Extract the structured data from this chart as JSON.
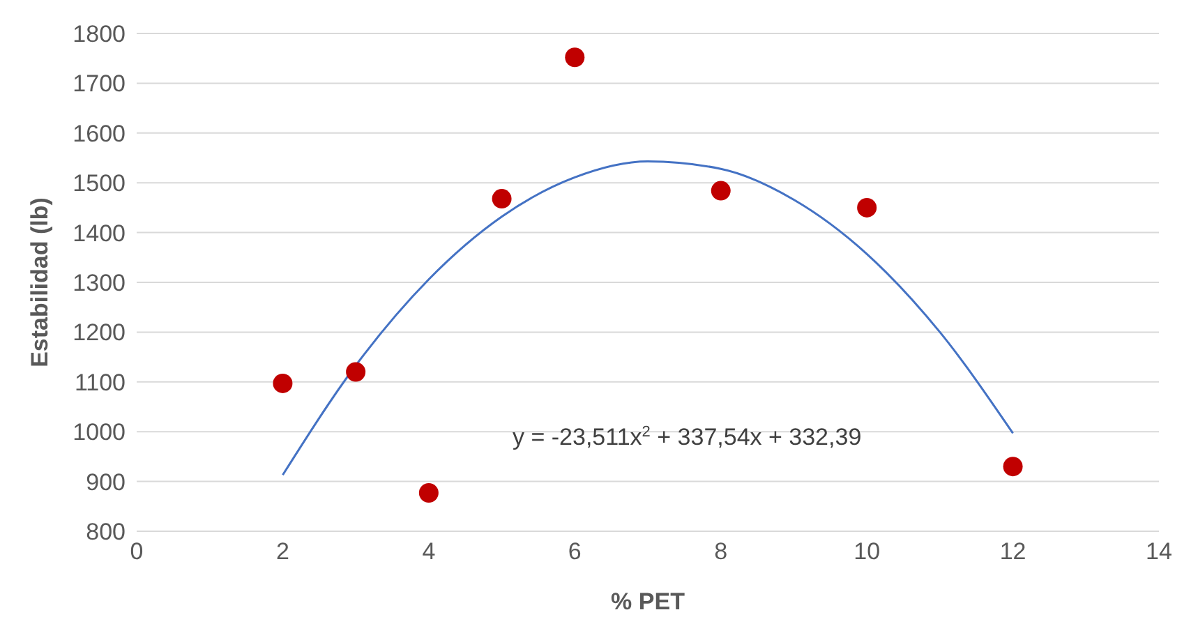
{
  "chart_data": {
    "type": "scatter",
    "xlabel": "% PET",
    "ylabel": "Estabilidad (lb)",
    "xlim": [
      0,
      14
    ],
    "xticks": [
      0,
      2,
      4,
      6,
      8,
      10,
      12,
      14
    ],
    "ylim": [
      800,
      1800
    ],
    "yticks": [
      800,
      900,
      1000,
      1100,
      1200,
      1300,
      1400,
      1500,
      1600,
      1700,
      1800
    ],
    "grid": "y",
    "marker": "circle",
    "series": [
      {
        "type": "scatter",
        "color": "#c00000",
        "x": [
          2,
          3,
          4,
          5,
          6,
          8,
          10,
          12
        ],
        "values": [
          1097,
          1120,
          877,
          1468,
          1752,
          1484,
          1450,
          930
        ]
      },
      {
        "type": "line",
        "color": "#4472c4",
        "marker": "none",
        "x": [
          2,
          3,
          4,
          5,
          6,
          7,
          8,
          9,
          10,
          11,
          12
        ],
        "values": [
          913,
          1133,
          1306,
          1432,
          1511,
          1543,
          1528,
          1466,
          1357,
          1200,
          997
        ]
      }
    ],
    "annotations": [
      "y = -23,511x$^{2}$ + 337,54x + 332,39"
    ]
  }
}
